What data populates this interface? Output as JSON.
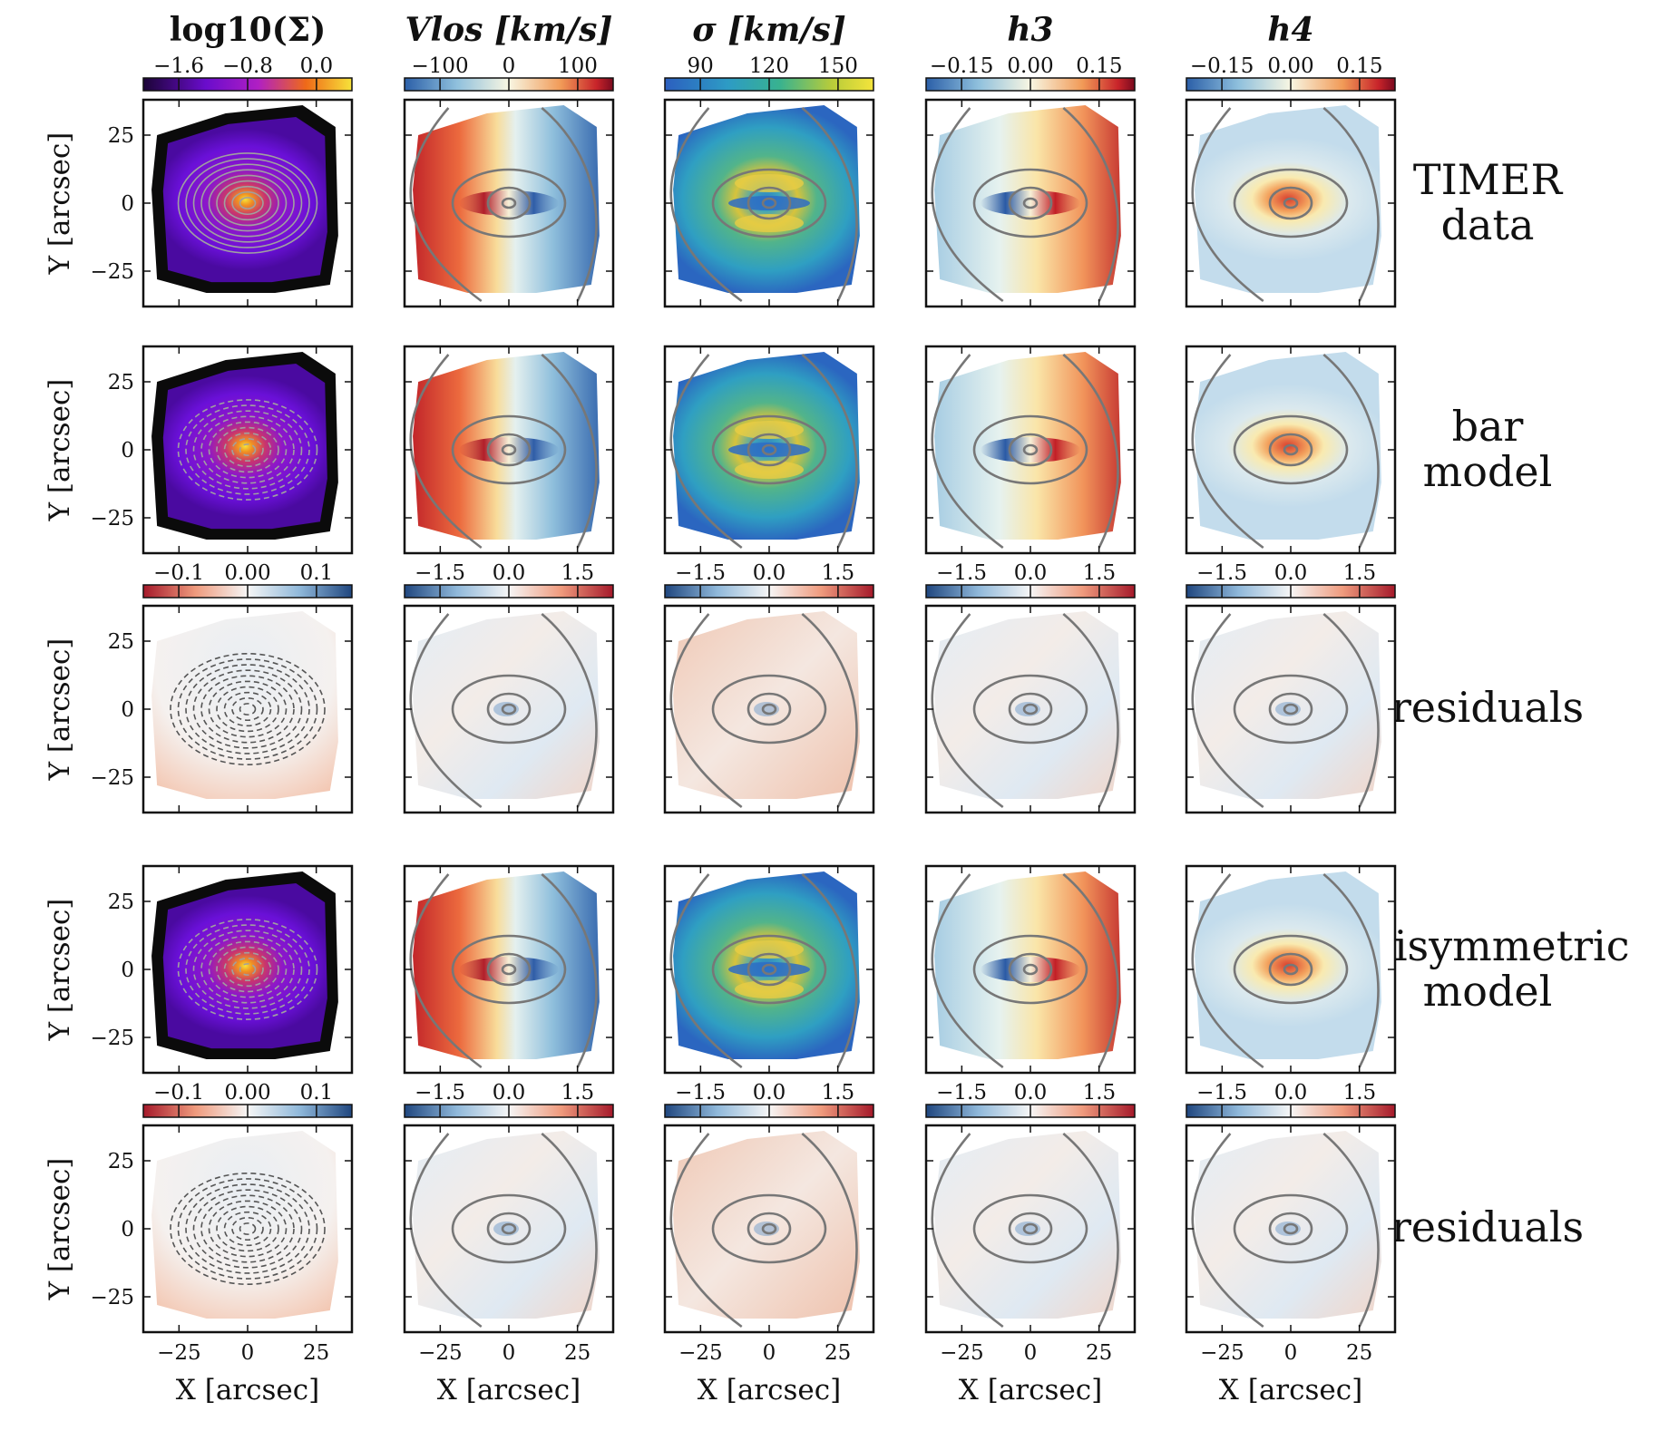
{
  "figure_kind": "2D kinematic maps grid",
  "chart_data": {
    "type": "heatmap",
    "columns": [
      {
        "key": "logsigma",
        "title": "log10(Σ)",
        "cmap": "plasma-dark",
        "cbar_ticks": [
          "−1.6",
          "−0.8",
          "0.0"
        ],
        "range": [
          -2.0,
          0.0
        ]
      },
      {
        "key": "vlos",
        "title": "Vlos [km/s]",
        "cmap": "rdylbu-r",
        "cbar_ticks": [
          "−100",
          "0",
          "100"
        ],
        "range": [
          -150,
          150
        ]
      },
      {
        "key": "sigma",
        "title": "σ [km/s]",
        "cmap": "viridis-ish",
        "cbar_ticks": [
          "90",
          "120",
          "150"
        ],
        "range": [
          65,
          155
        ]
      },
      {
        "key": "h3",
        "title": "h3",
        "cmap": "rdylbu-r",
        "cbar_ticks": [
          "−0.15",
          "0.00",
          "0.15"
        ],
        "range": [
          -0.2,
          0.2
        ]
      },
      {
        "key": "h4",
        "title": "h4",
        "cmap": "rdylbu-r",
        "cbar_ticks": [
          "−0.15",
          "0.00",
          "0.15"
        ],
        "range": [
          -0.2,
          0.2
        ]
      }
    ],
    "rows": [
      {
        "key": "timer",
        "label_lines": [
          "TIMER",
          "data"
        ],
        "kind": "data"
      },
      {
        "key": "bar",
        "label_lines": [
          "bar",
          "model"
        ],
        "kind": "model"
      },
      {
        "key": "res_bar",
        "label_lines": [
          "residuals"
        ],
        "kind": "residual",
        "cbar_ticks": [
          [
            "−0.1",
            "0.00",
            "0.1"
          ],
          [
            "−1.5",
            "0.0",
            "1.5"
          ],
          [
            "−1.5",
            "0.0",
            "1.5"
          ],
          [
            "−1.5",
            "0.0",
            "1.5"
          ],
          [
            "−1.5",
            "0.0",
            "1.5"
          ]
        ]
      },
      {
        "key": "axi",
        "label_lines": [
          "axisymmetric",
          "model"
        ],
        "kind": "model"
      },
      {
        "key": "res_axi",
        "label_lines": [
          "residuals"
        ],
        "kind": "residual",
        "cbar_ticks": [
          [
            "−0.1",
            "0.00",
            "0.1"
          ],
          [
            "−1.5",
            "0.0",
            "1.5"
          ],
          [
            "−1.5",
            "0.0",
            "1.5"
          ],
          [
            "−1.5",
            "0.0",
            "1.5"
          ],
          [
            "−1.5",
            "0.0",
            "1.5"
          ]
        ]
      }
    ],
    "xlabel": "X [arcsec]",
    "ylabel": "Y [arcsec]",
    "xticks": [
      "−25",
      "0",
      "25"
    ],
    "yticks": [
      "25",
      "0",
      "−25"
    ],
    "xlim": [
      -38,
      38
    ],
    "ylim": [
      -38,
      38
    ]
  }
}
